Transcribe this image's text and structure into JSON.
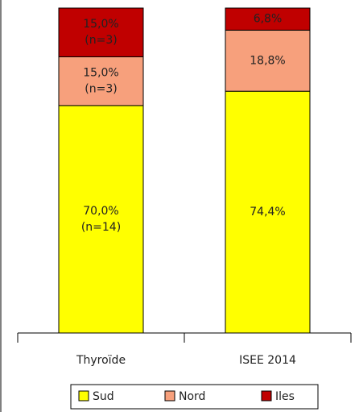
{
  "chart_data": {
    "type": "stacked_bar",
    "categories": [
      "Thyroïde",
      "ISEE 2014"
    ],
    "ylim": [
      0,
      100
    ],
    "legend": "bottom",
    "series": [
      {
        "name": "Sud",
        "color": "#ffff00",
        "values": [
          70.0,
          74.4
        ],
        "value_labels": [
          [
            "70,0%",
            "(n=14)"
          ],
          [
            "74,4%"
          ]
        ]
      },
      {
        "name": "Nord",
        "color": "#f7a07c",
        "values": [
          15.0,
          18.8
        ],
        "value_labels": [
          [
            "15,0%",
            "(n=3)"
          ],
          [
            "18,8%"
          ]
        ]
      },
      {
        "name": "Iles",
        "color": "#c00000",
        "values": [
          15.0,
          6.8
        ],
        "value_labels": [
          [
            "15,0%",
            "(n=3)"
          ],
          [
            "6,8%"
          ]
        ]
      }
    ]
  }
}
